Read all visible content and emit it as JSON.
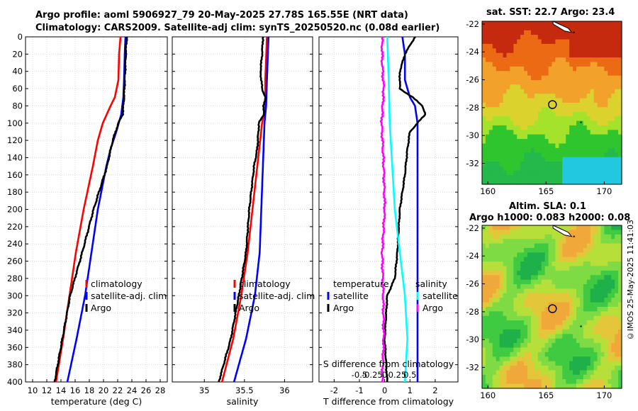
{
  "titles": {
    "line1": "Argo profile: aoml 5906927_79 20-May-2025 27.78S 165.55E (NRT data)",
    "line2": "Climatology: CARS2009. Satellite-adj clim: synTS_20250520.nc (0.08d earlier)"
  },
  "credit": "©IMOS 25-May-2025 11:41:03",
  "colors": {
    "climatology": "#ff0000",
    "satellite": "#0000ff",
    "argo": "#000000",
    "sat_salinity": "#00ffff",
    "argo_salinity_diff": "#ff00ff"
  },
  "chart_data": [
    {
      "type": "line",
      "id": "temperature",
      "xlabel": "temperature (deg C)",
      "ylabel": "",
      "xlim": [
        9,
        29
      ],
      "ylim": [
        0,
        400
      ],
      "xticks": [
        10,
        12,
        14,
        16,
        18,
        20,
        22,
        24,
        26,
        28
      ],
      "yticks": [
        0,
        20,
        40,
        60,
        80,
        100,
        120,
        140,
        160,
        180,
        200,
        220,
        240,
        260,
        280,
        300,
        320,
        340,
        360,
        380,
        400
      ],
      "legend": [
        "climatology",
        "satellite-adj. clim",
        "Argo"
      ],
      "series": [
        {
          "name": "climatology",
          "color": "#ff0000",
          "depth": [
            0,
            20,
            50,
            70,
            80,
            100,
            120,
            150,
            200,
            250,
            300,
            350,
            400
          ],
          "values": [
            22.4,
            22.2,
            22.1,
            21.6,
            21.0,
            19.9,
            19.2,
            18.5,
            17.2,
            16.1,
            15.2,
            14.3,
            13.3
          ]
        },
        {
          "name": "satellite-adj. clim",
          "color": "#0000ff",
          "depth": [
            0,
            20,
            50,
            70,
            90,
            110,
            130,
            150,
            200,
            250,
            300,
            350,
            400
          ],
          "values": [
            23.1,
            23.0,
            22.9,
            22.8,
            22.5,
            21.8,
            21.0,
            20.4,
            19.2,
            18.3,
            17.4,
            16.2,
            14.9
          ]
        },
        {
          "name": "Argo",
          "color": "#000000",
          "depth": [
            0,
            10,
            30,
            50,
            70,
            80,
            90,
            100,
            120,
            150,
            200,
            250,
            270,
            300,
            350,
            400
          ],
          "values": [
            23.3,
            23.2,
            23.1,
            23.0,
            22.9,
            22.8,
            22.7,
            22.1,
            21.3,
            20.5,
            18.6,
            17.0,
            16.3,
            15.3,
            14.2,
            13.1
          ]
        }
      ]
    },
    {
      "type": "line",
      "id": "salinity",
      "xlabel": "salinity",
      "xlim": [
        34.6,
        36.35
      ],
      "ylim": [
        0,
        400
      ],
      "xticks": [
        35,
        35.5,
        36
      ],
      "legend": [
        "climatology",
        "satellite-adj. clim",
        "Argo"
      ],
      "series": [
        {
          "name": "climatology",
          "color": "#ff0000",
          "depth": [
            0,
            50,
            80,
            100,
            150,
            200,
            250,
            300,
            350,
            400
          ],
          "values": [
            35.78,
            35.76,
            35.76,
            35.72,
            35.66,
            35.6,
            35.54,
            35.46,
            35.36,
            35.22
          ]
        },
        {
          "name": "satellite-adj. clim",
          "color": "#0000ff",
          "depth": [
            0,
            50,
            80,
            100,
            150,
            200,
            250,
            300,
            350,
            400
          ],
          "values": [
            35.8,
            35.78,
            35.77,
            35.75,
            35.73,
            35.71,
            35.69,
            35.63,
            35.52,
            35.37
          ]
        },
        {
          "name": "Argo",
          "color": "#000000",
          "depth": [
            0,
            20,
            40,
            60,
            70,
            80,
            90,
            100,
            130,
            150,
            200,
            250,
            300,
            350,
            400
          ],
          "values": [
            35.73,
            35.72,
            35.7,
            35.72,
            35.76,
            35.74,
            35.74,
            35.68,
            35.66,
            35.62,
            35.56,
            35.52,
            35.43,
            35.33,
            35.18
          ]
        }
      ]
    },
    {
      "type": "line",
      "id": "difference",
      "xlabel": "T difference from climatology",
      "top_xlabel": "S difference from climatology",
      "xlim": [
        -2.6,
        2.9
      ],
      "ylim": [
        0,
        400
      ],
      "xticks": [
        -2,
        -1,
        0,
        1,
        2
      ],
      "top_xticks_labels": [
        "-0.5",
        "-0.25",
        "0",
        "0.25",
        "0.5"
      ],
      "legend_left_title": "temperature",
      "legend_left": [
        "satellite",
        "Argo"
      ],
      "legend_right_title": "salinity",
      "legend_right": [
        "satellite",
        "Argo"
      ],
      "series": [
        {
          "name": "T satellite",
          "color": "#0000ff",
          "depth": [
            0,
            20,
            50,
            70,
            80,
            100,
            150,
            200,
            250,
            300,
            350,
            400
          ],
          "values": [
            0.7,
            0.8,
            0.8,
            1.0,
            1.2,
            1.3,
            1.3,
            1.3,
            1.3,
            1.3,
            1.3,
            1.3
          ]
        },
        {
          "name": "T Argo",
          "color": "#000000",
          "depth": [
            0,
            20,
            40,
            60,
            70,
            80,
            90,
            100,
            110,
            130,
            160,
            200,
            250,
            280,
            300,
            350,
            400
          ],
          "values": [
            1.2,
            0.8,
            0.6,
            0.6,
            1.1,
            1.5,
            1.6,
            1.3,
            1.0,
            0.9,
            0.8,
            0.6,
            0.5,
            0.4,
            0.1,
            0.0,
            0.1
          ]
        },
        {
          "name": "S satellite",
          "color": "#00ffff",
          "depth": [
            0,
            50,
            100,
            150,
            200,
            250,
            300,
            350,
            400
          ],
          "values": [
            0.05,
            0.08,
            0.1,
            0.15,
            0.2,
            0.3,
            0.4,
            0.45,
            0.4
          ]
        },
        {
          "name": "S Argo",
          "color": "#ff00ff",
          "depth": [
            0,
            30,
            60,
            100,
            150,
            200,
            250,
            300,
            350,
            400
          ],
          "values": [
            -0.05,
            -0.05,
            -0.02,
            -0.06,
            -0.02,
            0.0,
            -0.05,
            -0.03,
            -0.02,
            -0.05
          ]
        }
      ]
    },
    {
      "type": "heatmap",
      "id": "sst_map",
      "title": "sat. SST: 22.7 Argo: 23.4",
      "xticks": [
        160,
        165,
        170
      ],
      "yticks": [
        -22,
        -24,
        -26,
        -28,
        -30,
        -32
      ],
      "xlim": [
        159.5,
        171.5
      ],
      "ylim": [
        -33.5,
        -21.8
      ],
      "float_position": [
        165.55,
        -27.78
      ]
    },
    {
      "type": "heatmap",
      "id": "sla_map",
      "title": "Altim. SLA: 0.1",
      "subtitle": "Argo h1000: 0.083 h2000: 0.08",
      "xticks": [
        160,
        165,
        170
      ],
      "yticks": [
        -22,
        -24,
        -26,
        -28,
        -30,
        -32
      ],
      "xlim": [
        159.5,
        171.5
      ],
      "ylim": [
        -33.5,
        -21.8
      ],
      "float_position": [
        165.55,
        -27.78
      ]
    }
  ]
}
